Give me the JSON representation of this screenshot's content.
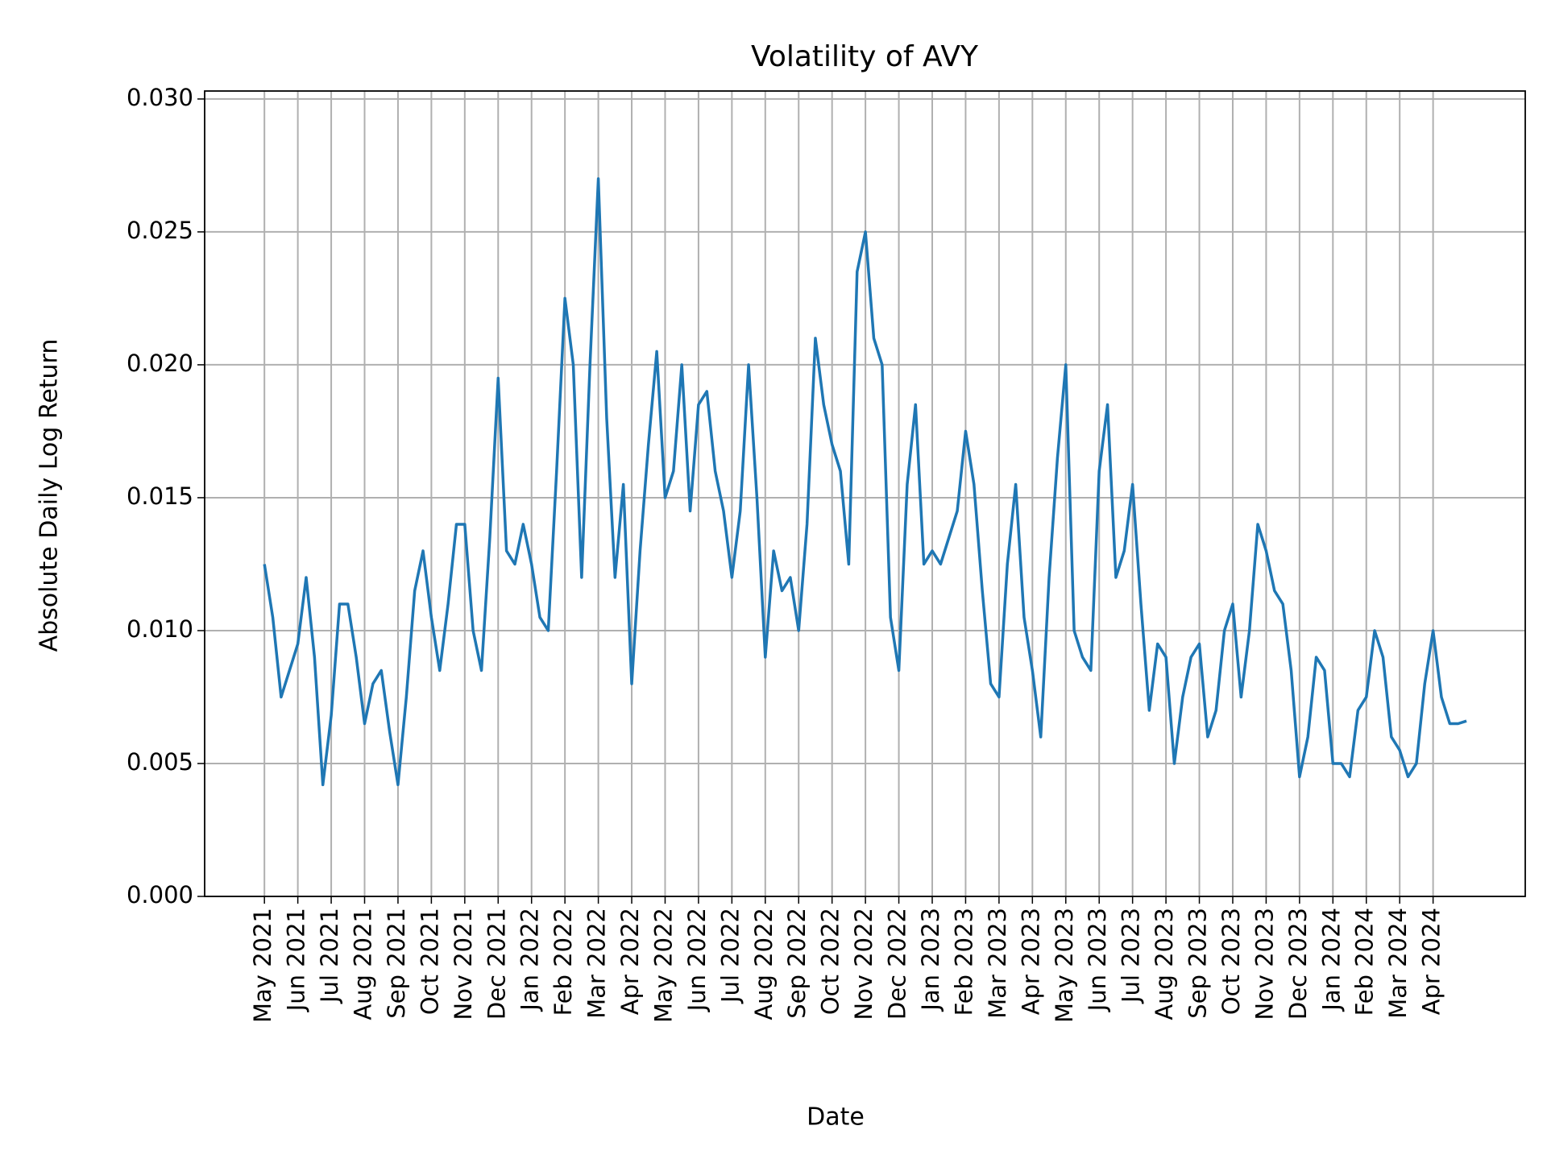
{
  "chart_data": {
    "type": "line",
    "title": "Volatility of AVY",
    "x_label": "Date",
    "y_label": "Absolute Daily Log Return",
    "color": "#1f77b4",
    "grid": true,
    "x": [
      0,
      0.25,
      0.5,
      0.75,
      1,
      1.25,
      1.5,
      1.75,
      2,
      2.25,
      2.5,
      2.75,
      3,
      3.25,
      3.5,
      3.75,
      4,
      4.25,
      4.5,
      4.75,
      5,
      5.25,
      5.5,
      5.75,
      6,
      6.25,
      6.5,
      6.75,
      7,
      7.25,
      7.5,
      7.75,
      8,
      8.25,
      8.5,
      8.75,
      9,
      9.25,
      9.5,
      9.75,
      10,
      10.25,
      10.5,
      10.75,
      11,
      11.25,
      11.5,
      11.75,
      12,
      12.25,
      12.5,
      12.75,
      13,
      13.25,
      13.5,
      13.75,
      14,
      14.25,
      14.5,
      14.75,
      15,
      15.25,
      15.5,
      15.75,
      16,
      16.25,
      16.5,
      16.75,
      17,
      17.25,
      17.5,
      17.75,
      18,
      18.25,
      18.5,
      18.75,
      19,
      19.25,
      19.5,
      19.75,
      20,
      20.25,
      20.5,
      20.75,
      21,
      21.25,
      21.5,
      21.75,
      22,
      22.25,
      22.5,
      22.75,
      23,
      23.25,
      23.5,
      23.75,
      24,
      24.25,
      24.5,
      24.75,
      25,
      25.25,
      25.5,
      25.75,
      26,
      26.25,
      26.5,
      26.75,
      27,
      27.25,
      27.5,
      27.75,
      28,
      28.25,
      28.5,
      28.75,
      29,
      29.25,
      29.5,
      29.75,
      30,
      30.25,
      30.5,
      30.75,
      31,
      31.25,
      31.5,
      31.75,
      32,
      32.25,
      32.5,
      32.75,
      33,
      33.25,
      33.5,
      33.75,
      34,
      34.25,
      34.5,
      34.75,
      35,
      35.25,
      35.5,
      35.75,
      36
    ],
    "values": [
      0.0125,
      0.0105,
      0.0075,
      0.0085,
      0.0095,
      0.012,
      0.009,
      0.0042,
      0.0068,
      0.011,
      0.011,
      0.009,
      0.0065,
      0.008,
      0.0085,
      0.0062,
      0.0042,
      0.0075,
      0.0115,
      0.013,
      0.0105,
      0.0085,
      0.011,
      0.014,
      0.014,
      0.01,
      0.0085,
      0.0135,
      0.0195,
      0.013,
      0.0125,
      0.014,
      0.0125,
      0.0105,
      0.01,
      0.016,
      0.0225,
      0.02,
      0.012,
      0.02,
      0.027,
      0.018,
      0.012,
      0.0155,
      0.008,
      0.013,
      0.017,
      0.0205,
      0.015,
      0.016,
      0.02,
      0.0145,
      0.0185,
      0.019,
      0.016,
      0.0145,
      0.012,
      0.0145,
      0.02,
      0.015,
      0.009,
      0.013,
      0.0115,
      0.012,
      0.01,
      0.014,
      0.021,
      0.0185,
      0.017,
      0.016,
      0.0125,
      0.0235,
      0.025,
      0.021,
      0.02,
      0.0105,
      0.0085,
      0.0155,
      0.0185,
      0.0125,
      0.013,
      0.0125,
      0.0135,
      0.0145,
      0.0175,
      0.0155,
      0.0115,
      0.008,
      0.0075,
      0.0125,
      0.0155,
      0.0105,
      0.0085,
      0.006,
      0.012,
      0.0165,
      0.02,
      0.01,
      0.009,
      0.0085,
      0.016,
      0.0185,
      0.012,
      0.013,
      0.0155,
      0.011,
      0.007,
      0.0095,
      0.009,
      0.005,
      0.0075,
      0.009,
      0.0095,
      0.006,
      0.007,
      0.01,
      0.011,
      0.0075,
      0.01,
      0.014,
      0.013,
      0.0115,
      0.011,
      0.0085,
      0.0045,
      0.006,
      0.009,
      0.0085,
      0.005,
      0.005,
      0.0045,
      0.007,
      0.0075,
      0.01,
      0.009,
      0.006,
      0.0055,
      0.0045,
      0.005,
      0.008,
      0.01,
      0.0075,
      0.0065,
      0.0065,
      0.0066
    ],
    "xlim": [
      -1.79,
      37.76
    ],
    "xticks": [
      {
        "value": 0,
        "label": "May 2021"
      },
      {
        "value": 1,
        "label": "Jun 2021"
      },
      {
        "value": 2,
        "label": "Jul 2021"
      },
      {
        "value": 3,
        "label": "Aug 2021"
      },
      {
        "value": 4,
        "label": "Sep 2021"
      },
      {
        "value": 5,
        "label": "Oct 2021"
      },
      {
        "value": 6,
        "label": "Nov 2021"
      },
      {
        "value": 7,
        "label": "Dec 2021"
      },
      {
        "value": 8,
        "label": "Jan 2022"
      },
      {
        "value": 9,
        "label": "Feb 2022"
      },
      {
        "value": 10,
        "label": "Mar 2022"
      },
      {
        "value": 11,
        "label": "Apr 2022"
      },
      {
        "value": 12,
        "label": "May 2022"
      },
      {
        "value": 13,
        "label": "Jun 2022"
      },
      {
        "value": 14,
        "label": "Jul 2022"
      },
      {
        "value": 15,
        "label": "Aug 2022"
      },
      {
        "value": 16,
        "label": "Sep 2022"
      },
      {
        "value": 17,
        "label": "Oct 2022"
      },
      {
        "value": 18,
        "label": "Nov 2022"
      },
      {
        "value": 19,
        "label": "Dec 2022"
      },
      {
        "value": 20,
        "label": "Jan 2023"
      },
      {
        "value": 21,
        "label": "Feb 2023"
      },
      {
        "value": 22,
        "label": "Mar 2023"
      },
      {
        "value": 23,
        "label": "Apr 2023"
      },
      {
        "value": 24,
        "label": "May 2023"
      },
      {
        "value": 25,
        "label": "Jun 2023"
      },
      {
        "value": 26,
        "label": "Jul 2023"
      },
      {
        "value": 27,
        "label": "Aug 2023"
      },
      {
        "value": 28,
        "label": "Sep 2023"
      },
      {
        "value": 29,
        "label": "Oct 2023"
      },
      {
        "value": 30,
        "label": "Nov 2023"
      },
      {
        "value": 31,
        "label": "Dec 2023"
      },
      {
        "value": 32,
        "label": "Jan 2024"
      },
      {
        "value": 33,
        "label": "Feb 2024"
      },
      {
        "value": 34,
        "label": "Mar 2024"
      },
      {
        "value": 35,
        "label": "Apr 2024"
      }
    ],
    "ylim": [
      0,
      0.0303
    ],
    "yticks": [
      {
        "value": 0,
        "label": "0.000"
      },
      0.005,
      {
        "value": 0.01,
        "label": "0.010"
      },
      0.015,
      {
        "value": 0.02,
        "label": "0.020"
      },
      0.025,
      {
        "value": 0.03,
        "label": "0.030"
      }
    ]
  }
}
